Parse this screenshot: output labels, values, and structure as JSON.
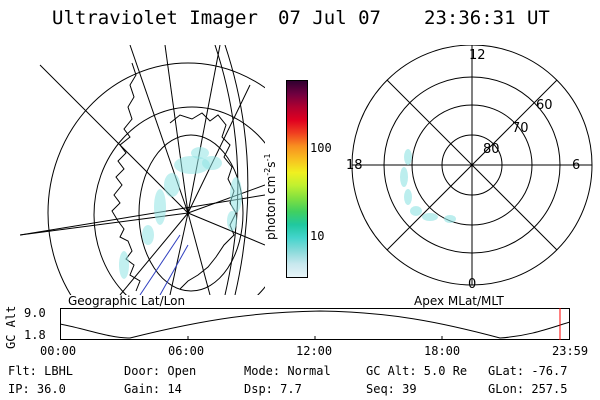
{
  "title": {
    "instrument": "Ultraviolet Imager",
    "date": "07 Jul 07",
    "time": "23:36:31 UT"
  },
  "colorbar": {
    "label": "photon cm",
    "label_sup1": "-2",
    "label_mid": "s",
    "label_sup2": "-1",
    "ticks": [
      "100",
      "10"
    ],
    "scale": "log",
    "colors": [
      "#e8f4f8",
      "#c8e8ee",
      "#88dada",
      "#44d4cc",
      "#20c8a0",
      "#40d060",
      "#80e040",
      "#c0f030",
      "#f0f020",
      "#f8c020",
      "#f89020",
      "#f04020",
      "#e00020",
      "#b00030",
      "#700040",
      "#300030"
    ]
  },
  "geo_map": {
    "label": "Geographic Lat/Lon"
  },
  "polar_plot": {
    "label": "Apex MLat/MLT",
    "mlt_labels": {
      "top": "12",
      "left": "18",
      "right": "6",
      "bottom": "0"
    },
    "lat_labels": [
      "60",
      "70",
      "80"
    ]
  },
  "alt_plot": {
    "ylabel": "GC Alt",
    "yticks": [
      "9.0",
      "1.8"
    ],
    "xticks": [
      "00:00",
      "06:00",
      "12:00",
      "18:00",
      "23:59"
    ]
  },
  "info": {
    "flt": "Flt: LBHL",
    "door": "Door: Open",
    "mode": "Mode: Normal",
    "gcalt": "GC Alt: 5.0 Re",
    "glat": "GLat: -76.7",
    "ip": "IP: 36.0",
    "gain": "Gain: 14",
    "dsp": "Dsp:    7.7",
    "seq": "Seq: 39",
    "glon": "GLon: 257.5"
  },
  "accent": {
    "aurora": "#8fe3e3",
    "marker": "#ff0000"
  }
}
